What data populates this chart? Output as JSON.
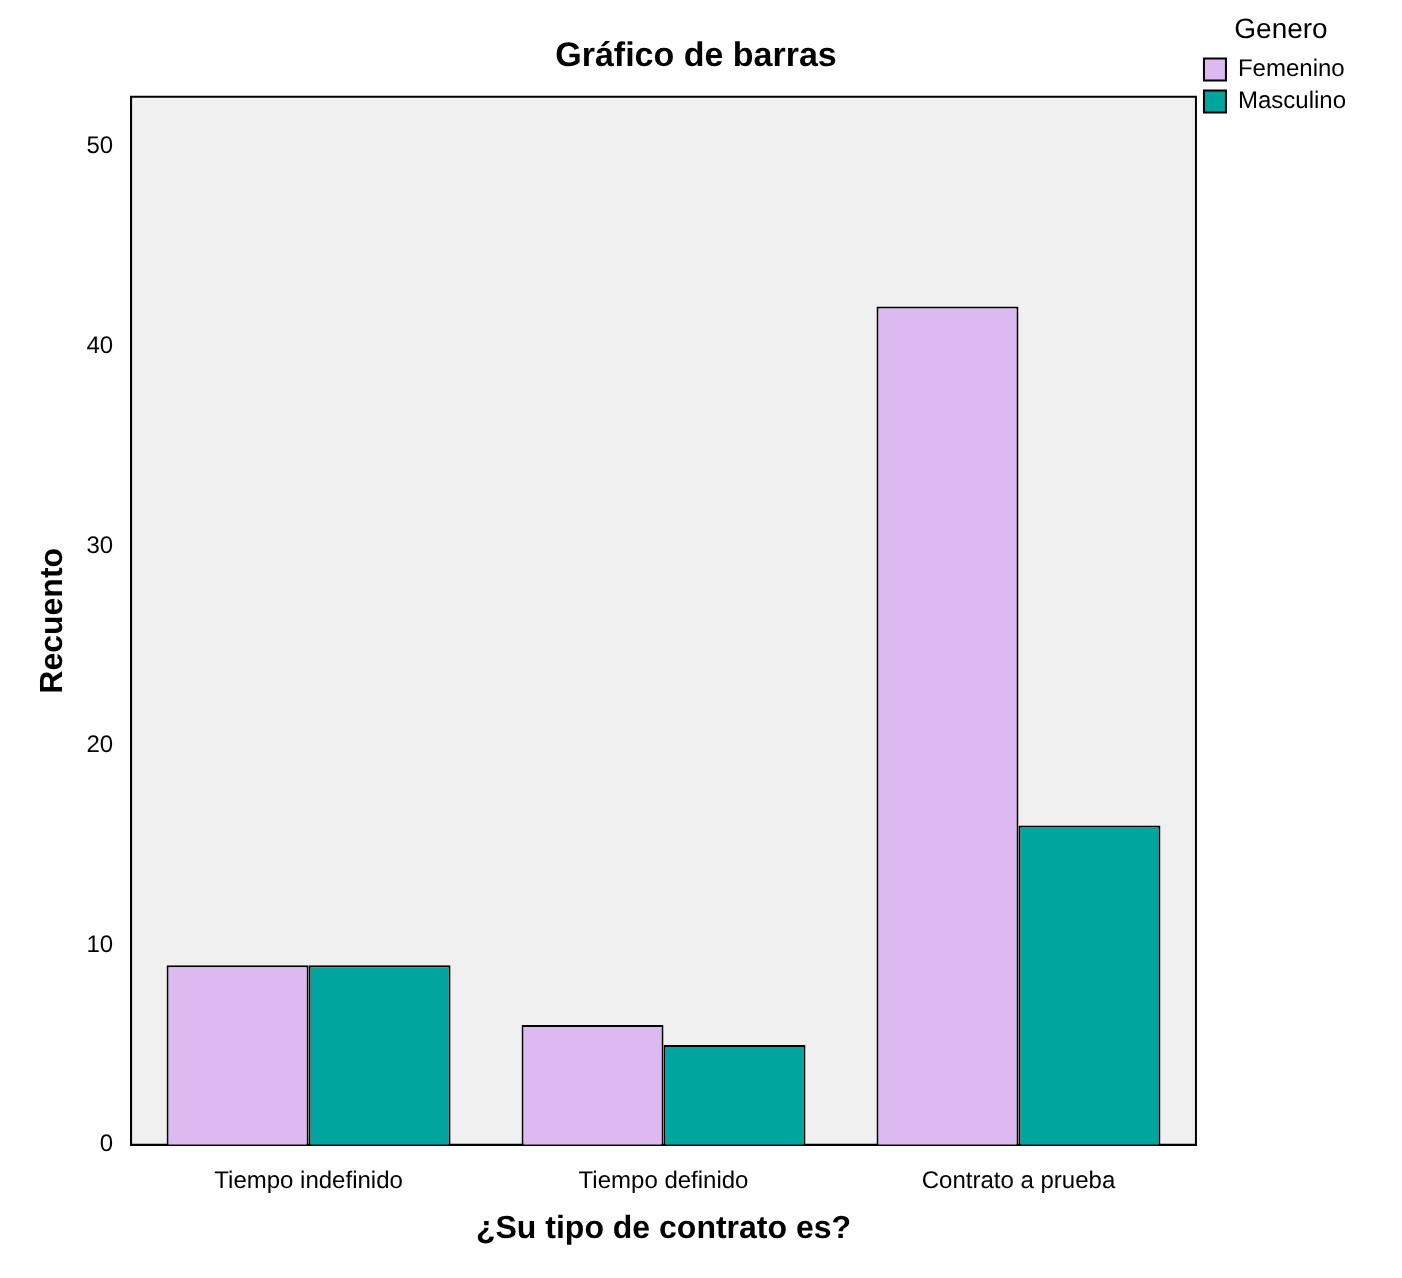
{
  "chart_data": {
    "type": "bar",
    "title": "Gráfico de barras",
    "xlabel": "¿Su tipo de contrato es?",
    "ylabel": "Recuento",
    "legend_title": "Genero",
    "categories": [
      "Tiempo indefinido",
      "Tiempo definido",
      "Contrato a prueba"
    ],
    "series": [
      {
        "name": "Femenino",
        "color": "#dcb9f0",
        "values": [
          9,
          6,
          42
        ]
      },
      {
        "name": "Masculino",
        "color": "#00a59e",
        "values": [
          9,
          5,
          16
        ]
      }
    ],
    "ylim": [
      0,
      52.5
    ],
    "yticks": [
      0,
      10,
      20,
      30,
      40,
      50
    ],
    "grid": false,
    "legend": "top right"
  }
}
